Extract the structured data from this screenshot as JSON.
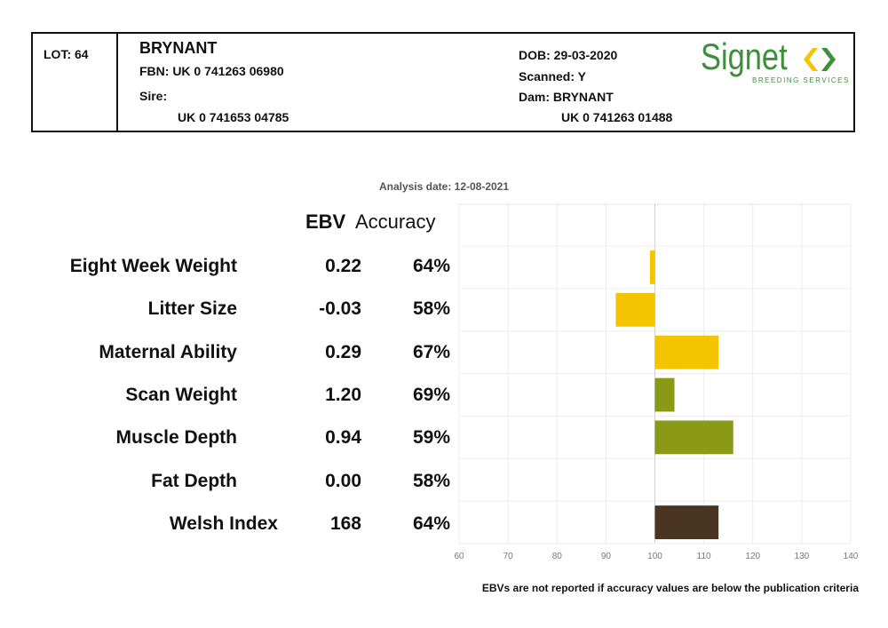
{
  "header": {
    "lot": "LOT: 64",
    "name": "BRYNANT",
    "fbn": "FBN: UK 0 741263 06980",
    "sire_label": "Sire:",
    "sire_id": "UK 0 741653 04785",
    "dob": "DOB: 29-03-2020",
    "scanned": "Scanned: Y",
    "dam": "Dam: BRYNANT",
    "dam_id": "UK 0 741263 01488",
    "logo_word": "Signet",
    "logo_sub": "BREEDING SERVICES",
    "logo_color": "#3d8f3a"
  },
  "analysis_date": "Analysis date: 12-08-2021",
  "table_headers": {
    "ebv": "EBV",
    "accuracy": "Accuracy"
  },
  "rows": [
    {
      "label": "Eight Week Weight",
      "ebv": "0.22",
      "accuracy": "64%"
    },
    {
      "label": "Litter Size",
      "ebv": "-0.03",
      "accuracy": "58%"
    },
    {
      "label": "Maternal Ability",
      "ebv": "0.29",
      "accuracy": "67%"
    },
    {
      "label": "Scan Weight",
      "ebv": "1.20",
      "accuracy": "69%"
    },
    {
      "label": "Muscle Depth",
      "ebv": "0.94",
      "accuracy": "59%"
    },
    {
      "label": "Fat Depth",
      "ebv": "0.00",
      "accuracy": "58%"
    },
    {
      "label": "Welsh Index",
      "ebv": "168",
      "accuracy": "64%"
    }
  ],
  "footnote": "EBVs are not reported if accuracy values are below the publication criteria",
  "chart_data": {
    "type": "bar",
    "orientation": "horizontal",
    "baseline": 100,
    "xlim": [
      60,
      140
    ],
    "xticks": [
      60,
      70,
      80,
      90,
      100,
      110,
      120,
      130,
      140
    ],
    "grid": true,
    "categories": [
      "Eight Week Weight",
      "Litter Size",
      "Maternal Ability",
      "Scan Weight",
      "Muscle Depth",
      "Fat Depth",
      "Welsh Index"
    ],
    "values": [
      99,
      92,
      113,
      104,
      116,
      100,
      113
    ],
    "colors": [
      "#f5c400",
      "#f5c400",
      "#f5c400",
      "#8a9a16",
      "#8a9a16",
      "#8a9a16",
      "#4a3522"
    ]
  }
}
